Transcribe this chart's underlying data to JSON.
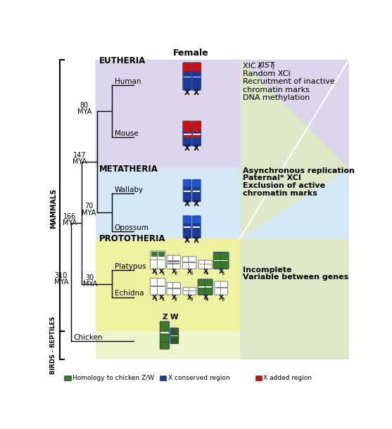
{
  "fig_width": 5.57,
  "fig_height": 6.1,
  "dpi": 100,
  "bg": "#ffffff",
  "eutheria_bg": "#ddd5eb",
  "metatheria_bg": "#d5e8f5",
  "prototheria_bg": "#eef2a0",
  "birds_bg": "#eef5cc",
  "right_green": "#dce8c8",
  "blue": "#1a3a9a",
  "red": "#cc1111",
  "green": "#3a7a2a",
  "dark_green": "#2d5a1e",
  "gray": "#888888",
  "tree_color": "#000000",
  "eutheria_label": "EUTHERIA",
  "metatheria_label": "METATHERIA",
  "prototheria_label": "PROTOTHERIA",
  "title": "Female",
  "mammals_label": "MAMMALS",
  "birds_label": "BIRDS - REPTILES",
  "human_label": "Human",
  "mouse_label": "Mouse",
  "wallaby_label": "Wallaby",
  "opossum_label": "Opossum",
  "platypus_label": "Platypus",
  "echidna_label": "Echidna",
  "chicken_label": "Chicken",
  "euth_text": [
    "XIC (XIST)",
    "Random XCI",
    "Recruitment of inactive",
    "chromatin marks",
    "DNA methylation"
  ],
  "meta_text": [
    "Asynchronous replication",
    "Paternal* XCI",
    "Exclusion of active",
    "chromatin marks"
  ],
  "proto_text": [
    "Incomplete",
    "Variable between genes"
  ],
  "legend": [
    {
      "color": "#3a7a2a",
      "label": "Homology to chicken Z/W"
    },
    {
      "color": "#1a3a9a",
      "label": "X conserved region"
    },
    {
      "color": "#cc1111",
      "label": "X added region"
    }
  ]
}
